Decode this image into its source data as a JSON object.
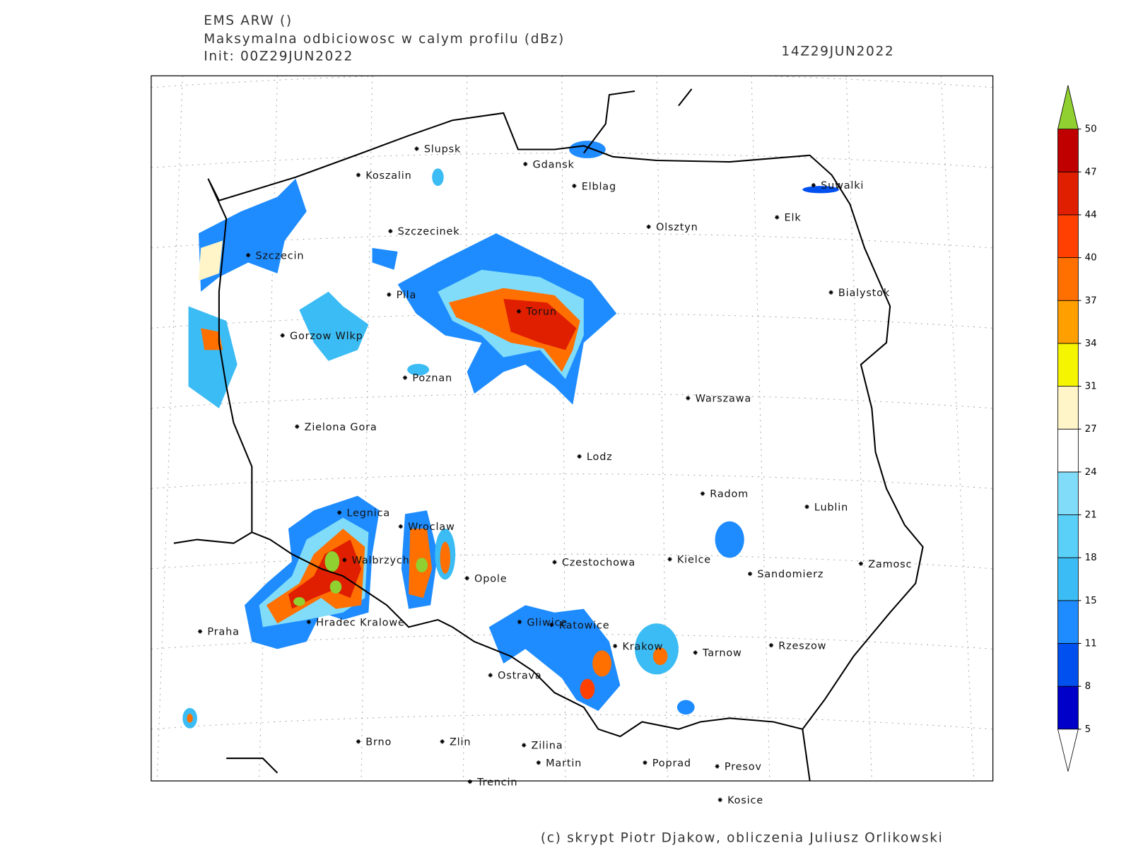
{
  "header": {
    "model": "EMS ARW ()",
    "field": "Maksymalna odbiciowosc w calym profilu (dBz)",
    "init": "Init: 00Z29JUN2022",
    "valid": "14Z29JUN2022"
  },
  "cities": [
    "Slupsk",
    "Koszalin",
    "Gdansk",
    "Elblag",
    "Suwalki",
    "Olsztyn",
    "Elk",
    "Szczecinek",
    "Szczecin",
    "Bialystok",
    "Pila",
    "Torun",
    "Gorzow Wlkp",
    "Poznan",
    "Warszawa",
    "Zielona Gora",
    "Lodz",
    "Radom",
    "Lublin",
    "Legnica",
    "Wroclaw",
    "Walbrzych",
    "Czestochowa",
    "Kielce",
    "Zamosc",
    "Sandomierz",
    "Opole",
    "Hradec Kralowe",
    "Gliwice",
    "Katowice",
    "Praha",
    "Krakow",
    "Tarnow",
    "Rzeszow",
    "Ostrava",
    "Brno",
    "Zlin",
    "Zilina",
    "Martin",
    "Poprad",
    "Presov",
    "Trencin",
    "Kosice"
  ],
  "colorbar": {
    "levels": [
      5,
      8,
      11,
      15,
      18,
      21,
      24,
      27,
      31,
      34,
      37,
      40,
      44,
      47,
      50
    ],
    "colors": [
      "#0000c8",
      "#0050f0",
      "#1e8cff",
      "#3cbcf4",
      "#5ad0f8",
      "#80dcf8",
      "#ffffff",
      "#fff5c8",
      "#f5f500",
      "#ffa000",
      "#ff7000",
      "#ff4000",
      "#e01e00",
      "#c00000"
    ],
    "over_color": "#90d030",
    "under_color": "#ffffff"
  },
  "footer": "(c) skrypt Piotr Djakow, obliczenia Juliusz Orlikowski"
}
